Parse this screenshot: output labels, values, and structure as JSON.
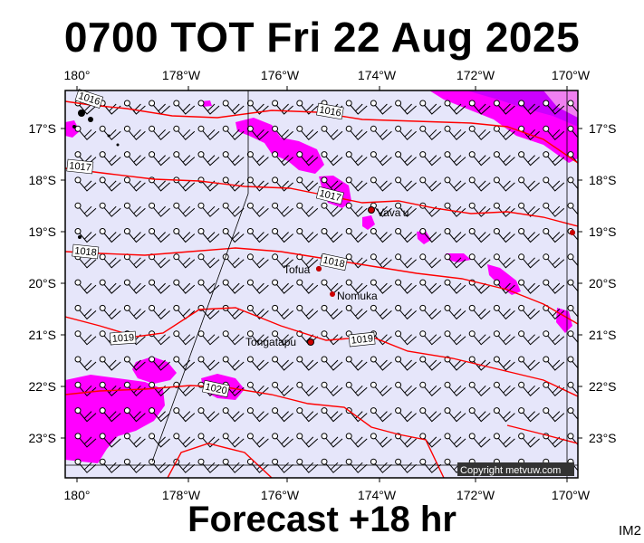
{
  "title": "0700 TOT Fri 22 Aug 2025",
  "subtitle": "Forecast +18 hr",
  "model_tag": "IM2",
  "copyright": "Copyright metvuw.com",
  "lon_labels": [
    "180°",
    "178°W",
    "176°W",
    "174°W",
    "172°W",
    "170°W"
  ],
  "lat_labels": [
    "17°S",
    "18°S",
    "19°S",
    "20°S",
    "21°S",
    "22°S",
    "23°S"
  ],
  "isobar_labels": [
    "1016",
    "1016",
    "1017",
    "1017",
    "1018",
    "1018",
    "1019",
    "1019",
    "1020"
  ],
  "places": [
    "Vava'u",
    "Tofua",
    "Nomuka",
    "Tongatapu"
  ],
  "colors": {
    "background": "#e6e6fa",
    "isobar": "#ff0000",
    "rain_light": "#ff00ff",
    "rain_heavy": "#cc00ff",
    "rain_pale": "#f080f0",
    "place_dot": "#cc0000"
  }
}
